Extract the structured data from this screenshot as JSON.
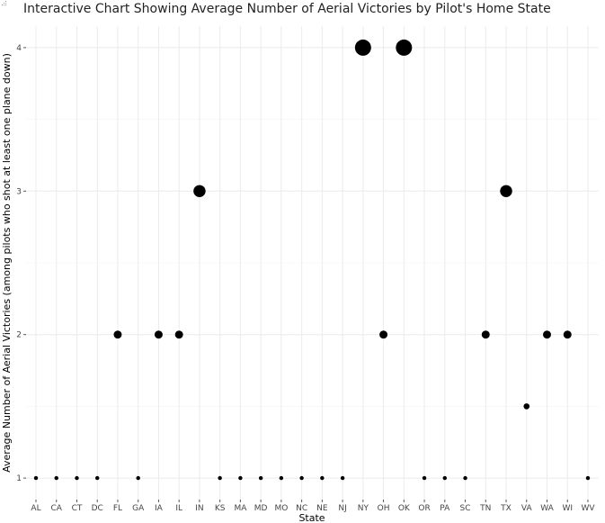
{
  "chart_data": {
    "type": "scatter",
    "title": "Interactive Chart Showing Average Number of Aerial Victories by Pilot's Home State",
    "xlabel": "State",
    "ylabel": "Average Number of Aerial Victories (among pilots who shot at least one plane down)",
    "categories": [
      "AL",
      "CA",
      "CT",
      "DC",
      "FL",
      "GA",
      "IA",
      "IL",
      "IN",
      "KS",
      "MA",
      "MD",
      "MO",
      "NC",
      "NE",
      "NJ",
      "NY",
      "OH",
      "OK",
      "OR",
      "PA",
      "SC",
      "TN",
      "TX",
      "VA",
      "WA",
      "WI",
      "WV"
    ],
    "values": [
      1,
      1,
      1,
      1,
      2,
      1,
      2,
      2,
      3,
      1,
      1,
      1,
      1,
      1,
      1,
      1,
      4,
      2,
      4,
      1,
      1,
      1,
      2,
      3,
      1.5,
      2,
      2,
      1
    ],
    "y_ticks": [
      1,
      2,
      3,
      4
    ],
    "ylim": [
      0.85,
      4.15
    ],
    "grid": true,
    "point_color": "#000000",
    "gridline_color": "#ebebeb"
  }
}
